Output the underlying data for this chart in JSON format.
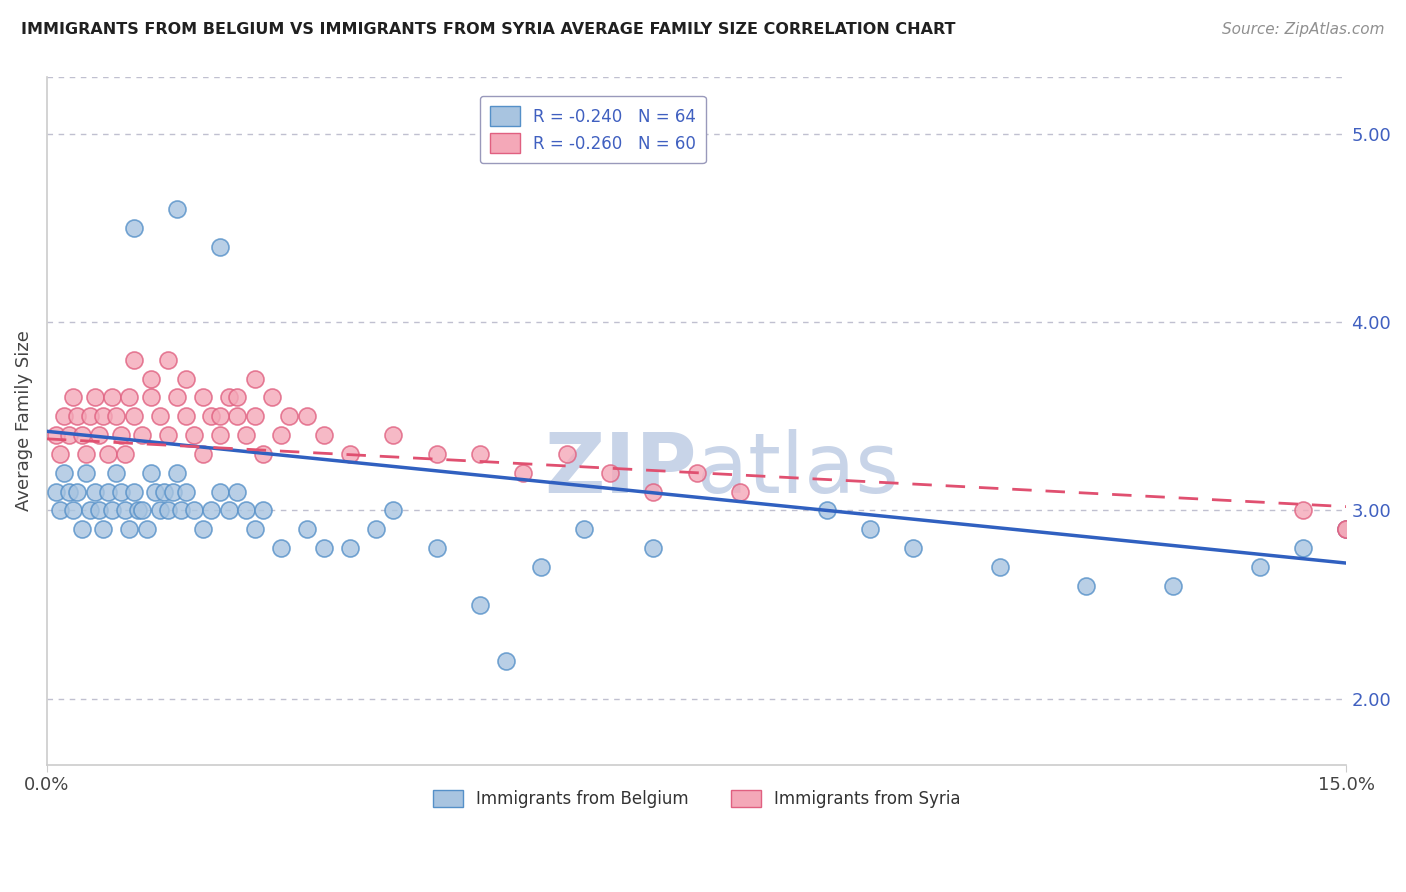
{
  "title": "IMMIGRANTS FROM BELGIUM VS IMMIGRANTS FROM SYRIA AVERAGE FAMILY SIZE CORRELATION CHART",
  "source": "Source: ZipAtlas.com",
  "ylabel": "Average Family Size",
  "right_yticks": [
    2.0,
    3.0,
    4.0,
    5.0
  ],
  "xlim": [
    0.0,
    15.0
  ],
  "ylim": [
    1.65,
    5.3
  ],
  "belgium_R": -0.24,
  "belgium_N": 64,
  "syria_R": -0.26,
  "syria_N": 60,
  "belgium_color": "#a8c4e0",
  "belgium_color_dark": "#5590c8",
  "syria_color": "#f4a8b8",
  "syria_color_dark": "#e06080",
  "trend_blue": "#3060c0",
  "trend_pink": "#e05070",
  "background_color": "#ffffff",
  "grid_color": "#c0c0d0",
  "title_color": "#202020",
  "source_color": "#909090",
  "legend_text_color": "#4060c0",
  "watermark_color": "#c8d4e8",
  "bel_x": [
    0.1,
    0.15,
    0.2,
    0.25,
    0.3,
    0.35,
    0.4,
    0.45,
    0.5,
    0.55,
    0.6,
    0.65,
    0.7,
    0.75,
    0.8,
    0.85,
    0.9,
    0.95,
    1.0,
    1.05,
    1.1,
    1.15,
    1.2,
    1.25,
    1.3,
    1.35,
    1.4,
    1.45,
    1.5,
    1.55,
    1.6,
    1.7,
    1.8,
    1.9,
    2.0,
    2.1,
    2.2,
    2.3,
    2.4,
    2.5,
    2.7,
    3.0,
    3.2,
    3.5,
    3.8,
    4.0,
    4.5,
    5.0,
    5.3,
    5.7,
    6.2,
    7.0,
    9.0,
    9.5,
    10.0,
    11.0,
    12.0,
    13.0,
    14.0,
    14.5,
    15.0,
    1.0,
    1.5,
    2.0
  ],
  "bel_y": [
    3.1,
    3.0,
    3.2,
    3.1,
    3.0,
    3.1,
    2.9,
    3.2,
    3.0,
    3.1,
    3.0,
    2.9,
    3.1,
    3.0,
    3.2,
    3.1,
    3.0,
    2.9,
    3.1,
    3.0,
    3.0,
    2.9,
    3.2,
    3.1,
    3.0,
    3.1,
    3.0,
    3.1,
    3.2,
    3.0,
    3.1,
    3.0,
    2.9,
    3.0,
    3.1,
    3.0,
    3.1,
    3.0,
    2.9,
    3.0,
    2.8,
    2.9,
    2.8,
    2.8,
    2.9,
    3.0,
    2.8,
    2.5,
    2.2,
    2.7,
    2.9,
    2.8,
    3.0,
    2.9,
    2.8,
    2.7,
    2.6,
    2.6,
    2.7,
    2.8,
    2.9,
    4.5,
    4.6,
    4.4
  ],
  "syr_x": [
    0.1,
    0.15,
    0.2,
    0.25,
    0.3,
    0.35,
    0.4,
    0.45,
    0.5,
    0.55,
    0.6,
    0.65,
    0.7,
    0.75,
    0.8,
    0.85,
    0.9,
    0.95,
    1.0,
    1.1,
    1.2,
    1.3,
    1.4,
    1.5,
    1.6,
    1.7,
    1.8,
    1.9,
    2.0,
    2.1,
    2.2,
    2.3,
    2.4,
    2.5,
    2.7,
    3.0,
    3.2,
    3.5,
    4.0,
    4.5,
    5.0,
    5.5,
    6.0,
    6.5,
    7.0,
    7.5,
    8.0,
    14.5,
    15.0,
    15.0,
    1.0,
    1.2,
    1.4,
    1.6,
    1.8,
    2.0,
    2.2,
    2.4,
    2.6,
    2.8
  ],
  "syr_y": [
    3.4,
    3.3,
    3.5,
    3.4,
    3.6,
    3.5,
    3.4,
    3.3,
    3.5,
    3.6,
    3.4,
    3.5,
    3.3,
    3.6,
    3.5,
    3.4,
    3.3,
    3.6,
    3.5,
    3.4,
    3.6,
    3.5,
    3.4,
    3.6,
    3.5,
    3.4,
    3.3,
    3.5,
    3.4,
    3.6,
    3.5,
    3.4,
    3.5,
    3.3,
    3.4,
    3.5,
    3.4,
    3.3,
    3.4,
    3.3,
    3.3,
    3.2,
    3.3,
    3.2,
    3.1,
    3.2,
    3.1,
    3.0,
    2.9,
    2.9,
    3.8,
    3.7,
    3.8,
    3.7,
    3.6,
    3.5,
    3.6,
    3.7,
    3.6,
    3.5
  ],
  "bel_trend_x": [
    0.0,
    15.0
  ],
  "bel_trend_y": [
    3.42,
    2.72
  ],
  "syr_trend_x": [
    0.0,
    15.0
  ],
  "syr_trend_y": [
    3.38,
    3.02
  ]
}
